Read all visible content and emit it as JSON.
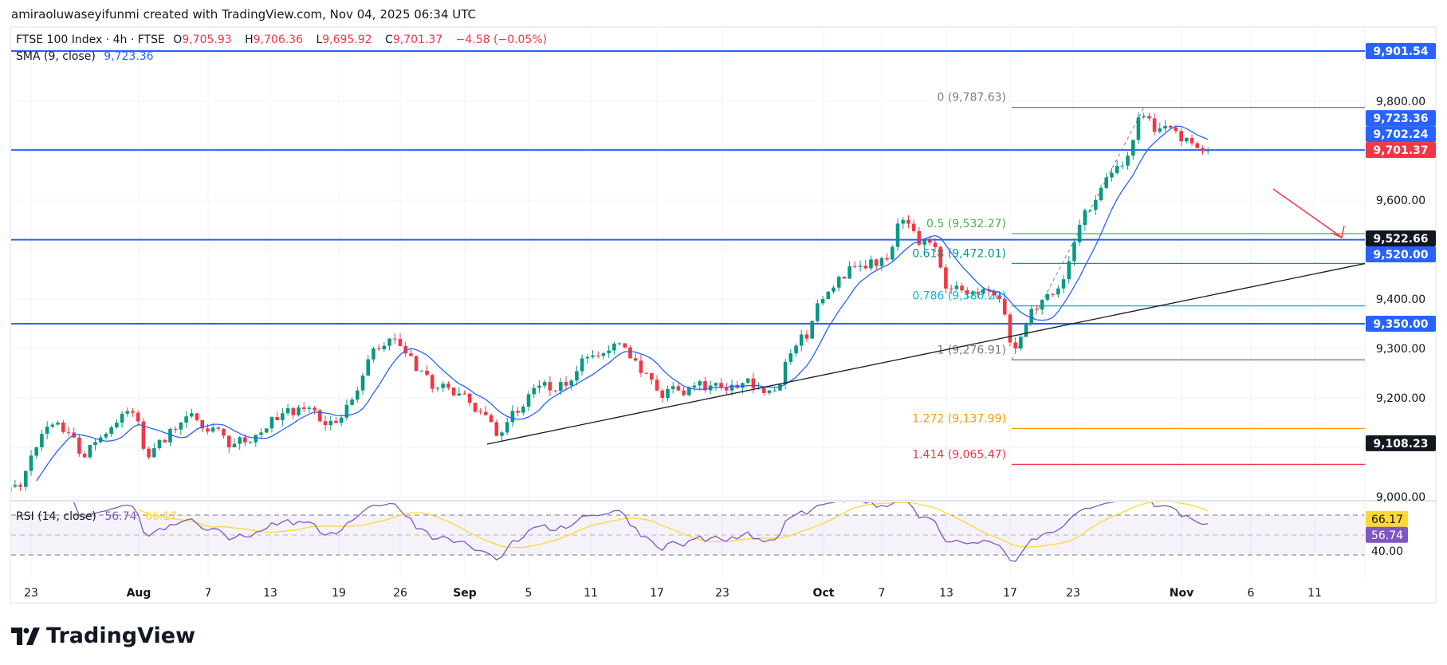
{
  "author_line": "amiraoluwaseyifunmi created with TradingView.com, Nov 04, 2025 06:34 UTC",
  "legend": {
    "symbol": "FTSE 100 Index · 4h · FTSE",
    "open_label": "O",
    "open": "9,705.93",
    "high_label": "H",
    "high": "9,706.36",
    "low_label": "L",
    "low": "9,695.92",
    "close_label": "C",
    "close": "9,701.37",
    "change": "−4.58 (−0.05%)",
    "sma_label": "SMA (9, close)",
    "sma_value": "9,723.36"
  },
  "rsi_legend": {
    "label": "RSI (14, close)",
    "rsi_value": "56.74",
    "ma_value": "66.17"
  },
  "logo_text": "TradingView",
  "colors": {
    "up": "#089981",
    "down": "#f23645",
    "sma": "#2962ff",
    "level": "#2962ff",
    "rsi": "#7e57c2",
    "rsi_ma": "#fdd835",
    "trendline": "#131722",
    "arrow": "#f23645"
  },
  "price_axis": [
    {
      "text": "9,901.54",
      "price": 9901.54,
      "style": "blue"
    },
    {
      "text": "9,800.00",
      "price": 9800,
      "style": "plain"
    },
    {
      "text": "9,723.36",
      "price": 9723.36,
      "style": "blue"
    },
    {
      "text": "9,702.24",
      "price": 9702.24,
      "style": "blue"
    },
    {
      "text": "9,701.37",
      "price": 9701.37,
      "style": "red",
      "anchor": true
    },
    {
      "text": "9,600.00",
      "price": 9600,
      "style": "plain"
    },
    {
      "text": "9,522.66",
      "price": 9522.66,
      "style": "black"
    },
    {
      "text": "9,520.00",
      "price": 9520,
      "style": "blue"
    },
    {
      "text": "9,400.00",
      "price": 9400,
      "style": "plain"
    },
    {
      "text": "9,350.00",
      "price": 9350,
      "style": "blue"
    },
    {
      "text": "9,300.00",
      "price": 9300,
      "style": "plain"
    },
    {
      "text": "9,200.00",
      "price": 9200,
      "style": "plain"
    },
    {
      "text": "9,108.23",
      "price": 9108.23,
      "style": "black"
    },
    {
      "text": "9,000.00",
      "price": 9000,
      "style": "plain"
    }
  ],
  "rsi_axis": [
    {
      "text": "66.17",
      "value": 66.17,
      "style": "yellow"
    },
    {
      "text": "56.74",
      "value": 56.74,
      "style": "purple"
    },
    {
      "text": "40.00",
      "value": 40,
      "style": "plain"
    }
  ],
  "time_axis": [
    "23",
    "Aug",
    "7",
    "13",
    "19",
    "26",
    "Sep",
    "5",
    "11",
    "17",
    "23",
    "Oct",
    "7",
    "13",
    "17",
    "23",
    "Nov",
    "6",
    "11"
  ],
  "horizontal_levels": [
    9901.54,
    9701.37,
    9520.0,
    9350.0
  ],
  "fibonacci": [
    {
      "label": "0 (9,787.63)",
      "price": 9787.63,
      "color": "#787b86"
    },
    {
      "label": "0.5 (9,532.27)",
      "price": 9532.27,
      "color": "#4caf50"
    },
    {
      "label": "0.618 (9,472.01)",
      "price": 9472.01,
      "color": "#089981"
    },
    {
      "label": "0.786 (9,386.20)",
      "price": 9386.2,
      "color": "#00bcd4"
    },
    {
      "label": "1 (9,276.91)",
      "price": 9276.91,
      "color": "#787b86"
    },
    {
      "label": "1.272 (9,137.99)",
      "price": 9137.99,
      "color": "#ff9800"
    },
    {
      "label": "1.414 (9,065.47)",
      "price": 9065.47,
      "color": "#f23645"
    }
  ],
  "chart_data": {
    "type": "candlestick",
    "title": "FTSE 100 Index · 4h · FTSE",
    "ylim": [
      9000,
      9950
    ],
    "rsi_ylim": [
      30,
      70
    ],
    "grid": true,
    "indicators": [
      "SMA (9, close)",
      "RSI (14, close)"
    ],
    "approx_daily_close": [
      9010,
      9020,
      9100,
      9146,
      9130,
      9080,
      9120,
      9150,
      9170,
      9080,
      9110,
      9150,
      9155,
      9140,
      9100,
      9110,
      9130,
      9155,
      9165,
      9180,
      9145,
      9160,
      9215,
      9300,
      9320,
      9290,
      9255,
      9220,
      9205,
      9190,
      9165,
      9130,
      9170,
      9220,
      9215,
      9225,
      9280,
      9285,
      9310,
      9280,
      9250,
      9200,
      9215,
      9225,
      9225,
      9215,
      9230,
      9220,
      9215,
      9290,
      9320,
      9400,
      9445,
      9465,
      9480,
      9480,
      9560,
      9510,
      9505,
      9420,
      9410,
      9420,
      9400,
      9300,
      9380,
      9410,
      9440,
      9550,
      9600,
      9655,
      9690,
      9770,
      9745,
      9740,
      9715,
      9701.37
    ],
    "trendline": {
      "from": 9110,
      "to": 9465
    },
    "projection_arrow": {
      "from": 9700,
      "to": 9520
    }
  }
}
